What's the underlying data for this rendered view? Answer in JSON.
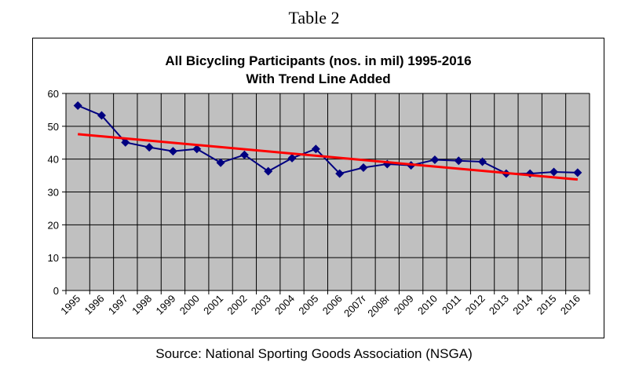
{
  "caption": "Table 2",
  "source": "Source: National Sporting Goods Association (NSGA)",
  "chart_data": {
    "type": "line",
    "title": "All Bicycling Participants (nos. in mil) 1995-2016",
    "subtitle": "With Trend Line Added",
    "categories": [
      "1995",
      "1996",
      "1997",
      "1998",
      "1999",
      "2000",
      "2001",
      "2002",
      "2003",
      "2004",
      "2005",
      "2006",
      "2007r",
      "2008r",
      "2009",
      "2010",
      "2011",
      "2012",
      "2013",
      "2014",
      "2015",
      "2016"
    ],
    "series": [
      {
        "values": [
          56.3,
          53.3,
          45.1,
          43.6,
          42.4,
          43.1,
          38.9,
          41.3,
          36.3,
          40.3,
          43.1,
          35.6,
          37.4,
          38.5,
          38.1,
          39.8,
          39.5,
          39.2,
          35.6,
          35.6,
          36.1,
          35.9
        ],
        "color": "#000080",
        "marker": "diamond"
      }
    ],
    "trendline": {
      "start": 47.6,
      "end": 33.8,
      "color": "#ff0000"
    },
    "ylim": [
      0,
      60
    ],
    "yticks": [
      0,
      10,
      20,
      30,
      40,
      50,
      60
    ],
    "plot_background": "#c0c0c0",
    "grid": true,
    "xlabel": "",
    "ylabel": ""
  }
}
